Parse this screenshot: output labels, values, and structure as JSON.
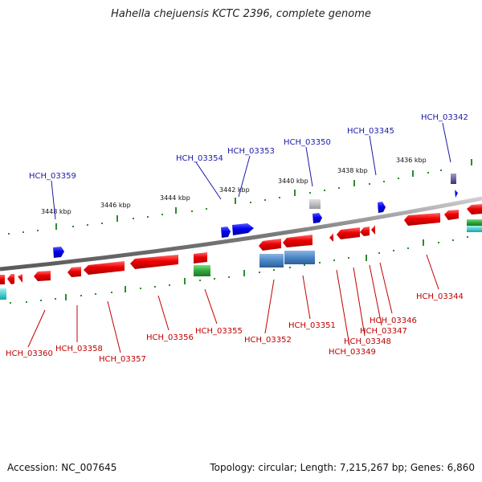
{
  "title": "Hahella chejuensis KCTC 2396, complete genome",
  "footer": {
    "accession": "Accession: NC_007645",
    "summary": "Topology: circular; Length: 7,215,267 bp; Genes: 6,860"
  },
  "colors": {
    "backbone": "#8a8a8a",
    "forward_gene": "#0000ee",
    "reverse_gene": "#ee0000",
    "forward_label": "#1a1aa6",
    "reverse_label": "#c00000",
    "tick": "#2e8b2e",
    "green_feature": "#2fa83a",
    "steelblue_feature": "#4a86c8",
    "grey_feature": "#b0b0b0",
    "purple_feature": "#6b5fa0",
    "cyan_feature": "#22cccc"
  },
  "scale_labels": [
    "3448 kbp",
    "3446 kbp",
    "3444 kbp",
    "3442 kbp",
    "3440 kbp",
    "3438 kbp",
    "3436 kbp"
  ],
  "forward_genes": [
    "HCH_03359",
    "HCH_03354",
    "HCH_03353",
    "HCH_03350",
    "HCH_03345",
    "HCH_03342"
  ],
  "reverse_genes": [
    "HCH_03360",
    "HCH_03358",
    "HCH_03357",
    "HCH_03356",
    "HCH_03355",
    "HCH_03352",
    "HCH_03351",
    "HCH_03349",
    "HCH_03348",
    "HCH_03347",
    "HCH_03346",
    "HCH_03344"
  ]
}
